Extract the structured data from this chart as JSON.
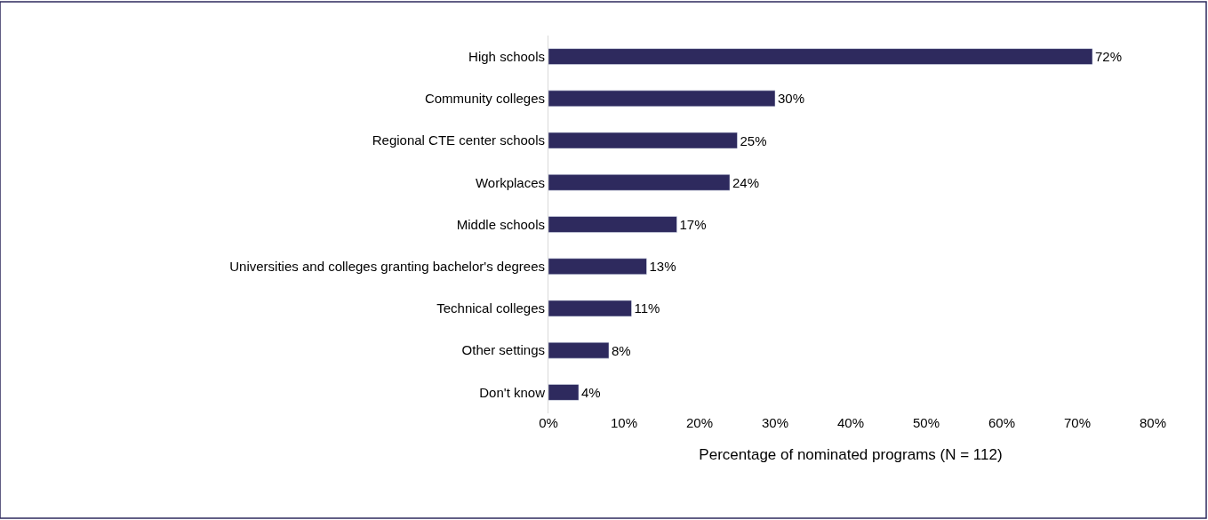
{
  "chart_data": {
    "type": "bar",
    "orientation": "horizontal",
    "xlabel": "Percentage of nominated programs (N = 112)",
    "categories": [
      "High schools",
      "Community colleges",
      "Regional CTE center schools",
      "Workplaces",
      "Middle schools",
      "Universities and colleges granting bachelor's degrees",
      "Technical colleges",
      "Other settings",
      "Don't know"
    ],
    "values": [
      72,
      30,
      25,
      24,
      17,
      13,
      11,
      8,
      4
    ],
    "value_labels": [
      "72%",
      "30%",
      "25%",
      "24%",
      "17%",
      "13%",
      "11%",
      "8%",
      "4%"
    ],
    "color": "#2e2a5e",
    "xlim": [
      0,
      80
    ],
    "xticks": [
      {
        "value": 0,
        "label": "0%"
      },
      {
        "value": 10,
        "label": "10%"
      },
      {
        "value": 20,
        "label": "20%"
      },
      {
        "value": 30,
        "label": "30%"
      },
      {
        "value": 40,
        "label": "40%"
      },
      {
        "value": 50,
        "label": "50%"
      },
      {
        "value": 60,
        "label": "60%"
      },
      {
        "value": 70,
        "label": "70%"
      },
      {
        "value": 80,
        "label": "80%"
      }
    ],
    "legend": false
  }
}
